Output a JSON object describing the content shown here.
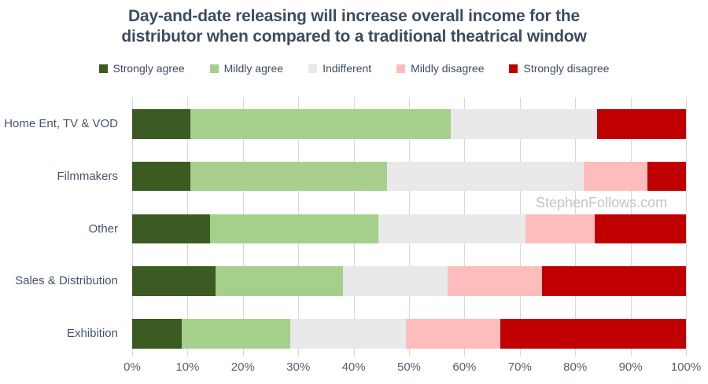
{
  "title": {
    "line1": "Day-and-date releasing will increase overall income for the",
    "line2": "distributor when compared to a traditional theatrical window"
  },
  "watermark": "StephenFollows.com",
  "colors": {
    "title_text": "#3d4c5f",
    "axis_text": "#566070",
    "category_text": "#44546a",
    "gridline": "#d9d9d9",
    "background": "#ffffff",
    "watermark_text": "#c4c4c4"
  },
  "chart_data": {
    "type": "bar",
    "orientation": "horizontal-stacked",
    "title": "Day-and-date releasing will increase overall income for the distributor when compared to a traditional theatrical window",
    "categories": [
      "Home Ent, TV & VOD",
      "Filmmakers",
      "Other",
      "Sales & Distribution",
      "Exhibition"
    ],
    "series": [
      {
        "name": "Strongly agree",
        "color": "#3b5b22",
        "values": [
          10.5,
          10.5,
          14.0,
          15.0,
          9.0
        ]
      },
      {
        "name": "Mildly agree",
        "color": "#a6cf8c",
        "values": [
          47.0,
          35.5,
          30.5,
          23.0,
          19.5
        ]
      },
      {
        "name": "Indifferent",
        "color": "#e9e9e9",
        "values": [
          26.5,
          35.5,
          26.5,
          19.0,
          21.0
        ]
      },
      {
        "name": "Mildly disagree",
        "color": "#fdbdbd",
        "values": [
          0.0,
          11.5,
          12.5,
          17.0,
          17.0
        ]
      },
      {
        "name": "Strongly disagree",
        "color": "#c00000",
        "values": [
          16.0,
          7.0,
          16.5,
          26.0,
          33.5
        ]
      }
    ],
    "x_ticks": [
      "0%",
      "10%",
      "20%",
      "30%",
      "40%",
      "50%",
      "60%",
      "70%",
      "80%",
      "90%",
      "100%"
    ],
    "xlim": [
      0,
      100
    ],
    "unit": "percent",
    "grid": true,
    "legend_position": "top"
  }
}
